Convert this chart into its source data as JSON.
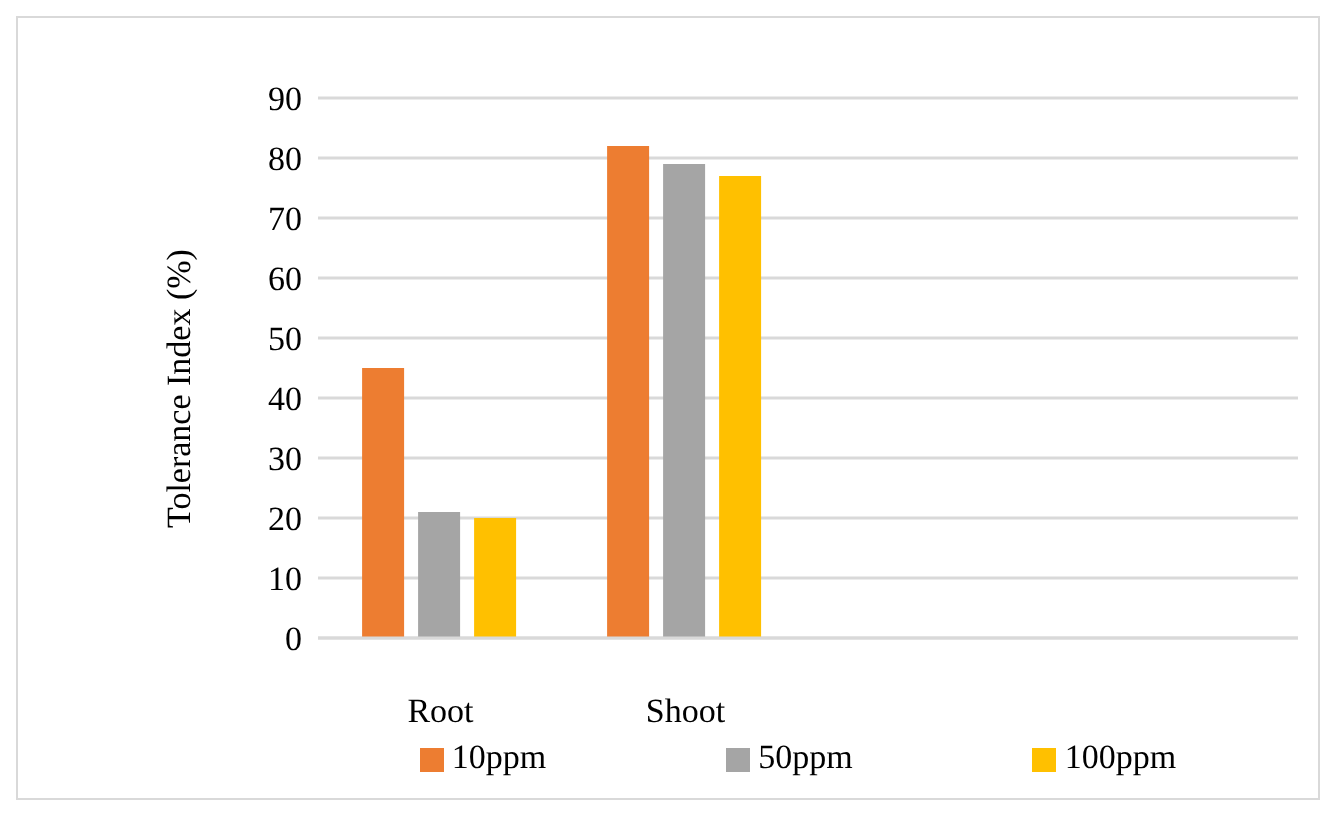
{
  "chart_data": {
    "type": "bar",
    "ylabel": "Tolerance Index (%)",
    "categories": [
      "Root",
      "Shoot",
      null,
      null
    ],
    "series": [
      {
        "name": "10ppm",
        "color": "#ed7d31",
        "values": [
          45,
          82,
          null,
          null
        ]
      },
      {
        "name": "50ppm",
        "color": "#a5a5a5",
        "values": [
          21,
          79,
          null,
          null
        ]
      },
      {
        "name": "100ppm",
        "color": "#ffc000",
        "values": [
          20,
          77,
          null,
          null
        ]
      }
    ],
    "ylim": [
      0,
      90
    ],
    "yticks": [
      0,
      10,
      20,
      30,
      40,
      50,
      60,
      70,
      80,
      90
    ],
    "grid": "y",
    "legend": "bottom"
  }
}
